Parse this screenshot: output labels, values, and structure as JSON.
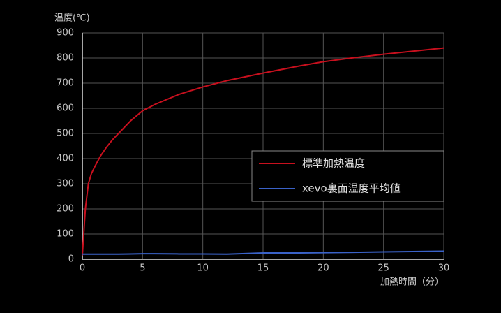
{
  "chart_data": {
    "type": "line",
    "y_label": "温度(℃)",
    "x_label": "加熱時間（分）",
    "x": [
      0,
      0.25,
      0.5,
      0.75,
      1,
      1.5,
      2,
      2.5,
      3,
      4,
      5,
      6,
      8,
      10,
      12,
      15,
      18,
      20,
      22,
      25,
      28,
      30
    ],
    "series": [
      {
        "name": "標準加熱温度",
        "color": "#c8101e",
        "values": [
          15,
          200,
          300,
          340,
          365,
          410,
          445,
          475,
          500,
          550,
          590,
          615,
          655,
          685,
          710,
          740,
          768,
          785,
          798,
          815,
          830,
          840
        ]
      },
      {
        "name": "xevo裏面温度平均値",
        "color": "#3a62c8",
        "values": [
          20,
          20,
          20,
          20,
          20,
          20,
          20,
          20,
          20,
          21,
          22,
          22,
          21,
          21,
          20,
          25,
          25,
          26,
          27,
          29,
          31,
          32
        ]
      }
    ],
    "xlim": [
      0,
      30
    ],
    "xticks": [
      0,
      5,
      10,
      15,
      20,
      25,
      30
    ],
    "ylim": [
      0,
      900
    ],
    "yticks": [
      0,
      100,
      200,
      300,
      400,
      500,
      600,
      700,
      800,
      900
    ],
    "grid": true,
    "legend": "center-right"
  }
}
